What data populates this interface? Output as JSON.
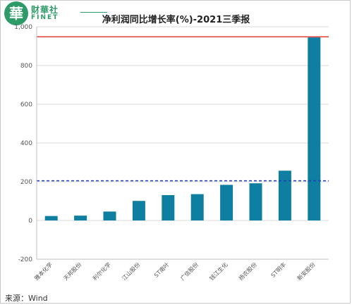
{
  "header": {
    "logo_mark": "華",
    "logo_cn": "财華社",
    "logo_en": "FINET",
    "title": "净利润同比增长率(%)-2021三季报"
  },
  "footer": {
    "source": "来源：Wind"
  },
  "colors": {
    "bar": "#0e7fa0",
    "reference_line": "#e0403a",
    "average_line": "#1f3fbf",
    "grid": "#d9d9d9"
  },
  "chart_data": {
    "type": "bar",
    "title": "净利润同比增长率(%)-2021三季报",
    "categories": [
      "雅本化学",
      "天邦股份",
      "利尔化学",
      "江山股份",
      "ST南叶",
      "广信股份",
      "钱江生化",
      "扬农股份",
      "ST明丰",
      "新安股份"
    ],
    "values": [
      23,
      25,
      46,
      101,
      131,
      136,
      184,
      192,
      257,
      945
    ],
    "ylim": [
      -200,
      1000
    ],
    "yticks": [
      -200,
      0,
      200,
      400,
      600,
      800,
      1000
    ],
    "ytick_labels": [
      "-200",
      "0",
      "200",
      "400",
      "600",
      "800",
      "1,000"
    ],
    "reference_lines": [
      {
        "value": 948,
        "style": "solid",
        "color": "#e0403a"
      },
      {
        "value": 205,
        "style": "dashed",
        "color": "#1f3fbf"
      }
    ],
    "xlabel": "",
    "ylabel": "",
    "grid": true
  }
}
